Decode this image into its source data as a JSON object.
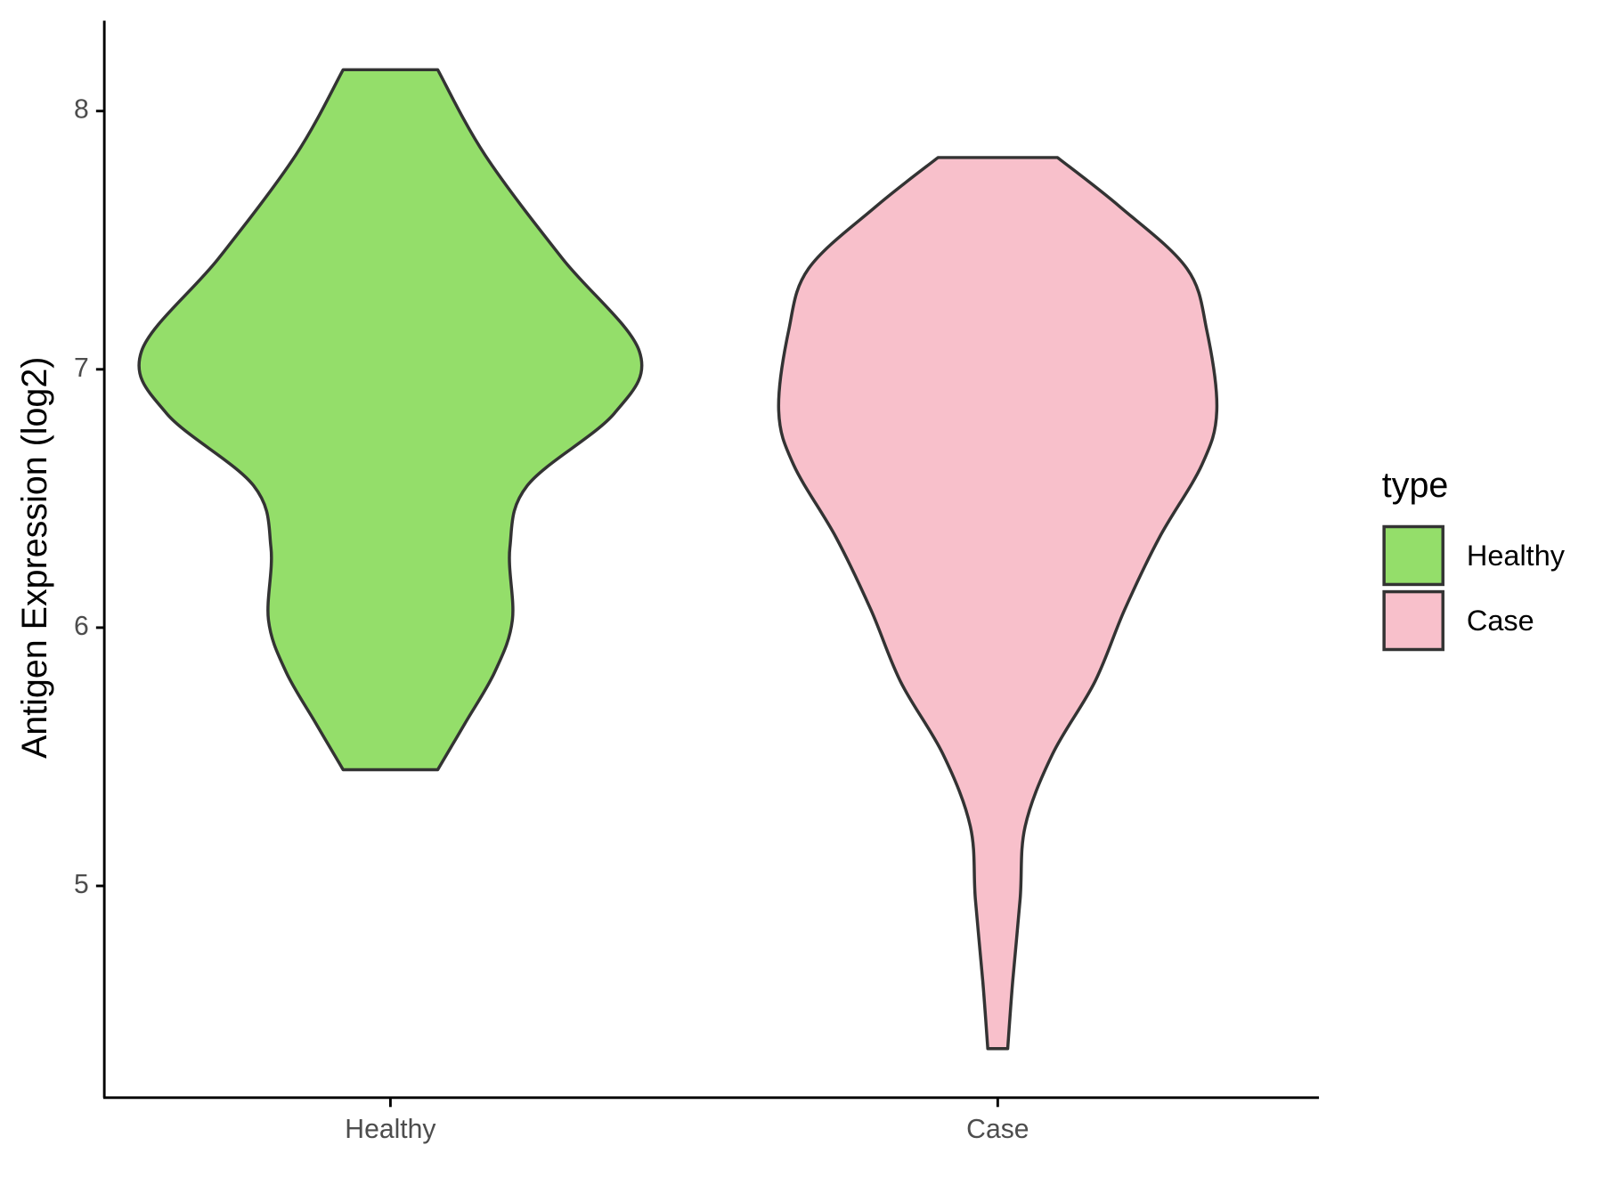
{
  "chart_data": {
    "type": "violin",
    "y_label": "Antigen Expression (log2)",
    "categories": [
      "Healthy",
      "Case"
    ],
    "legend_title": "type",
    "legend_position": "right",
    "ylim": [
      4.18,
      8.35
    ],
    "yticks": [
      5,
      6,
      7,
      8
    ],
    "series": [
      {
        "name": "Healthy",
        "color": "#94de6a",
        "y": [
          8.16,
          7.83,
          7.43,
          7.07,
          6.83,
          6.55,
          6.31,
          6.03,
          5.83,
          5.63,
          5.45
        ],
        "widths": [
          0.19,
          0.38,
          0.69,
          1,
          0.9,
          0.55,
          0.48,
          0.49,
          0.42,
          0.3,
          0.19
        ]
      },
      {
        "name": "Case",
        "color": "#f8c0cb",
        "y": [
          7.82,
          7.63,
          7.39,
          7.15,
          6.84,
          6.63,
          6.35,
          6.07,
          5.79,
          5.51,
          5.23,
          4.95,
          4.63,
          4.37
        ],
        "widths": [
          0.24,
          0.49,
          0.76,
          0.84,
          0.88,
          0.82,
          0.65,
          0.51,
          0.39,
          0.22,
          0.11,
          0.09,
          0.06,
          0.04
        ]
      }
    ]
  }
}
